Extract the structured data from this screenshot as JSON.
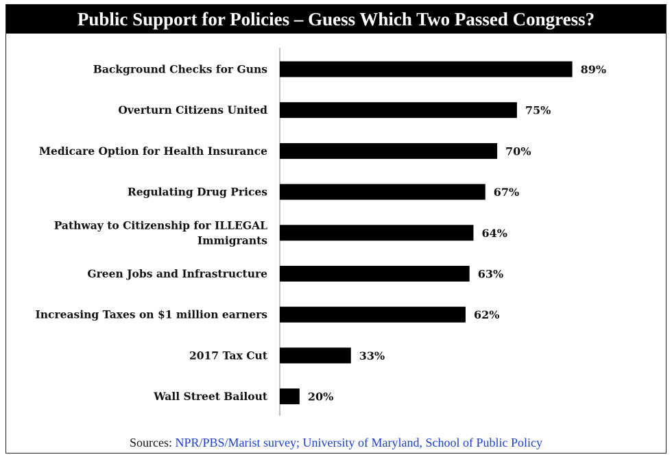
{
  "chart_data": {
    "type": "bar",
    "orientation": "horizontal",
    "title": "Public Support for Policies – Guess Which Two Passed Congress?",
    "categories": [
      [
        "Background Checks for Guns"
      ],
      [
        "Overturn Citizens United"
      ],
      [
        "Medicare Option for Health Insurance"
      ],
      [
        "Regulating Drug Prices"
      ],
      [
        "Pathway to Citizenship for ILLEGAL",
        "Immigrants"
      ],
      [
        "Green Jobs and Infrastructure"
      ],
      [
        "Increasing Taxes on $1 million earners"
      ],
      [
        "2017 Tax Cut"
      ],
      [
        "Wall Street Bailout"
      ]
    ],
    "values": [
      89,
      75,
      70,
      67,
      64,
      63,
      62,
      33,
      20
    ],
    "value_labels": [
      "89%",
      "75%",
      "70%",
      "67%",
      "64%",
      "63%",
      "62%",
      "33%",
      "20%"
    ],
    "unit": "%",
    "xlim": [
      15,
      100
    ],
    "bar_color": "#000000"
  },
  "sources": {
    "prefix": "Sources: ",
    "text": "NPR/PBS/Marist survey; University of Maryland, School of Public Policy"
  }
}
